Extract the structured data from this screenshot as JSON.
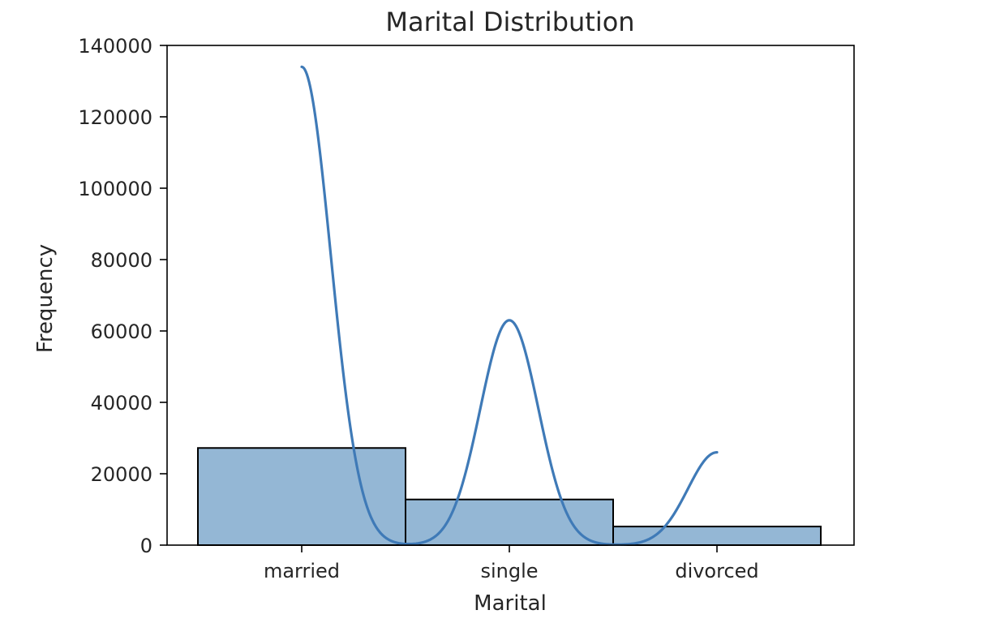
{
  "chart_data": {
    "type": "bar",
    "title": "Marital Distribution",
    "xlabel": "Marital",
    "ylabel": "Frequency",
    "categories": [
      "married",
      "single",
      "divorced"
    ],
    "values": [
      27214,
      12790,
      5207
    ],
    "ylim": [
      0,
      140000
    ],
    "yticks": [
      0,
      20000,
      40000,
      60000,
      80000,
      100000,
      120000,
      140000
    ],
    "grid": false,
    "kde": {
      "x": [
        0,
        1,
        2
      ],
      "peaks": [
        134000,
        63000,
        26000
      ],
      "bandwidth": 0.14
    },
    "colors": {
      "bar_fill": "#94b7d5",
      "bar_edge": "#000000",
      "kde_line": "#3f7ab7"
    }
  }
}
